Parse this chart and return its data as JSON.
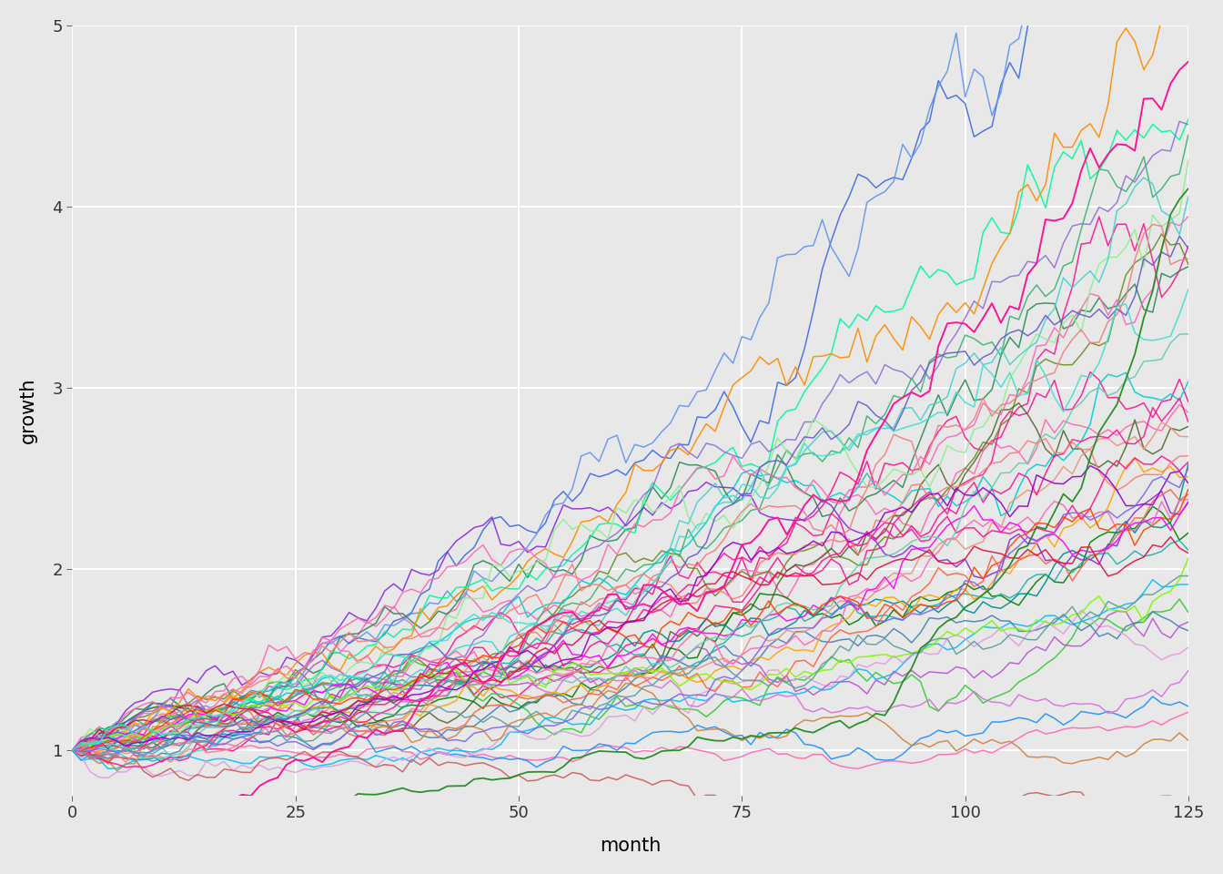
{
  "title": "",
  "xlabel": "month",
  "ylabel": "growth",
  "xlim": [
    0,
    125
  ],
  "ylim": [
    0.75,
    5.0
  ],
  "xticks": [
    0,
    25,
    50,
    75,
    100,
    125
  ],
  "yticks": [
    1,
    2,
    3,
    4,
    5
  ],
  "background_color": "#e8e8e8",
  "panel_color": "#e8e8e8",
  "grid_color": "#ffffff",
  "n_months": 125,
  "n_simulations": 50,
  "seed": 42,
  "mu": 0.008,
  "sigma": 0.025,
  "line_width": 1.1,
  "colors": [
    "#FF1493",
    "#FF69B4",
    "#FF1493",
    "#FF69B4",
    "#FF1493",
    "#228B22",
    "#32CD32",
    "#6B8E23",
    "#556B2F",
    "#008000",
    "#1E90FF",
    "#4169E1",
    "#00BFFF",
    "#6495ED",
    "#4682B4",
    "#00CED1",
    "#20B2AA",
    "#008B8B",
    "#2E8B57",
    "#00FA9A",
    "#9370DB",
    "#8A2BE2",
    "#DDA0DD",
    "#DA70D6",
    "#BA55D3",
    "#FF8C00",
    "#FFA500",
    "#FF6347",
    "#E9967A",
    "#CD853F",
    "#FF1493",
    "#FF69B4",
    "#FF00FF",
    "#FF69B4",
    "#FF1493",
    "#3CB371",
    "#90EE90",
    "#7CFC00",
    "#66CDAA",
    "#48D1CC",
    "#FF4500",
    "#DC143C",
    "#CD5C5C",
    "#F08080",
    "#FA8072",
    "#9400D3",
    "#7B68EE",
    "#6A5ACD",
    "#5F9EA0",
    "#40E0D0"
  ]
}
